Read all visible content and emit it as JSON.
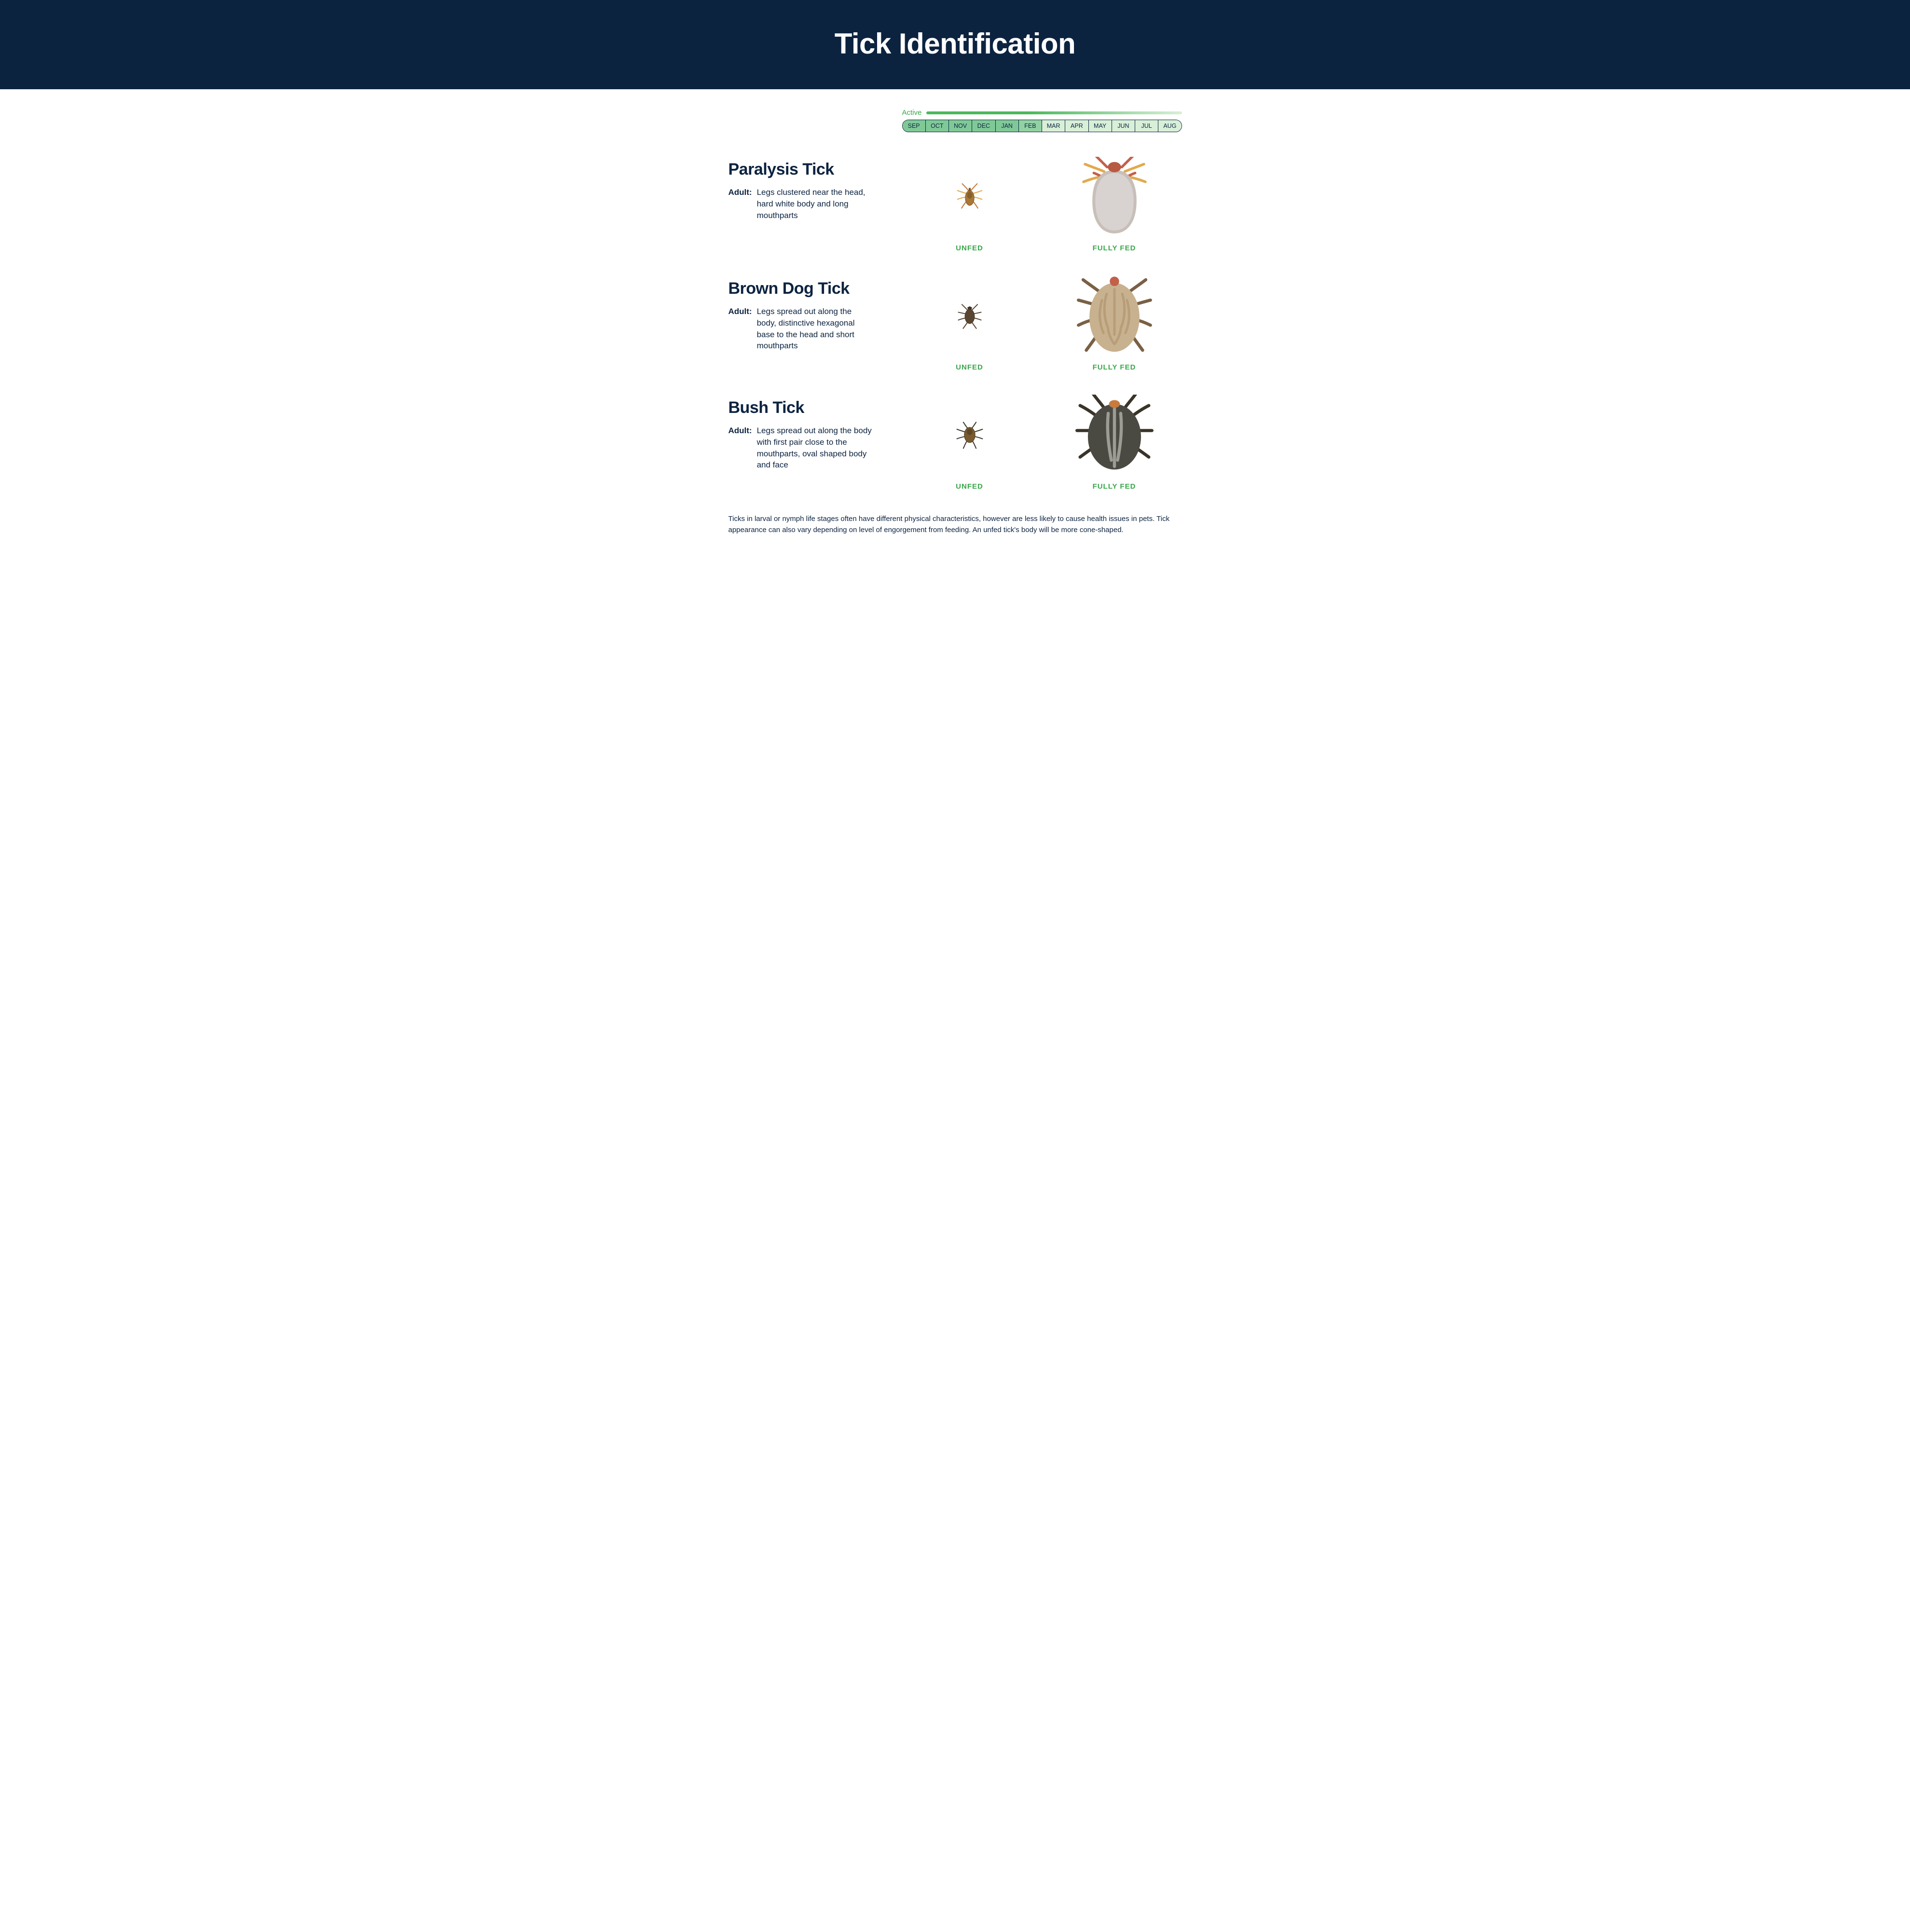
{
  "header": {
    "title": "Tick Identification"
  },
  "colors": {
    "header_bg": "#0c2340",
    "header_text": "#ffffff",
    "body_text": "#0c2340",
    "accent_green": "#3aa64a"
  },
  "timeline": {
    "active_label": "Active",
    "bar_gradient_from": "#4cb85c",
    "bar_gradient_to": "#d8efd8",
    "months": [
      {
        "label": "SEP",
        "bg": "#7fc997"
      },
      {
        "label": "OCT",
        "bg": "#7fc997"
      },
      {
        "label": "NOV",
        "bg": "#7fc997"
      },
      {
        "label": "DEC",
        "bg": "#7fc997"
      },
      {
        "label": "JAN",
        "bg": "#7fc997"
      },
      {
        "label": "FEB",
        "bg": "#92d1a3"
      },
      {
        "label": "MAR",
        "bg": "#d8efd8"
      },
      {
        "label": "APR",
        "bg": "#d8efd8"
      },
      {
        "label": "MAY",
        "bg": "#d8efd8"
      },
      {
        "label": "JUN",
        "bg": "#d8efd8"
      },
      {
        "label": "JUL",
        "bg": "#d8efd8"
      },
      {
        "label": "AUG",
        "bg": "#d8efd8"
      }
    ]
  },
  "ticks": [
    {
      "name": "Paralysis Tick",
      "desc_label": "Adult:",
      "desc_text": "Legs clustered near the head, hard white body and long mouthparts",
      "unfed_caption": "UNFED",
      "fed_caption": "FULLY FED",
      "illustration": {
        "unfed": {
          "body_fill": "#a97736",
          "body_stroke": "#7a5526",
          "leg_color": "#e3a94d",
          "leg_accent": "#c77b3c",
          "size": 70
        },
        "fed": {
          "body_fill": "#d8d2d0",
          "body_stroke": "#c7bfb8",
          "leg_color": "#e3a94d",
          "leg_accent": "#c3604a",
          "head_color": "#b85a42",
          "size": 160
        }
      }
    },
    {
      "name": "Brown Dog Tick",
      "desc_label": "Adult:",
      "desc_text": "Legs spread out along the body, distinctive hexagonal base to the head and short mouthparts",
      "unfed_caption": "UNFED",
      "fed_caption": "FULLY FED",
      "illustration": {
        "unfed": {
          "body_fill": "#5a4630",
          "body_stroke": "#3f3221",
          "leg_color": "#5a4630",
          "size": 62
        },
        "fed": {
          "body_fill": "#c8b18f",
          "pattern_fill": "#b79d78",
          "leg_color": "#7a6044",
          "head_color": "#c3604a",
          "size": 170
        }
      }
    },
    {
      "name": "Bush Tick",
      "desc_label": "Adult:",
      "desc_text": "Legs spread out along the body with first pair close to the mouthparts, oval shaped body and face",
      "unfed_caption": "UNFED",
      "fed_caption": "FULLY FED",
      "illustration": {
        "unfed": {
          "body_fill": "#7a5a2f",
          "body_stroke": "#4a3a20",
          "leg_color": "#3a3428",
          "size": 66
        },
        "fed": {
          "body_fill": "#4a4a42",
          "pattern_fill": "#9c9c94",
          "leg_color": "#3a3428",
          "head_color": "#c77b3c",
          "size": 170
        }
      }
    }
  ],
  "footnote": "Ticks in larval or nymph life stages often have different physical characteristics, however are less likely to cause health issues in pets. Tick appearance can also vary depending on level of engorgement from feeding. An unfed tick's body will be more cone-shaped."
}
